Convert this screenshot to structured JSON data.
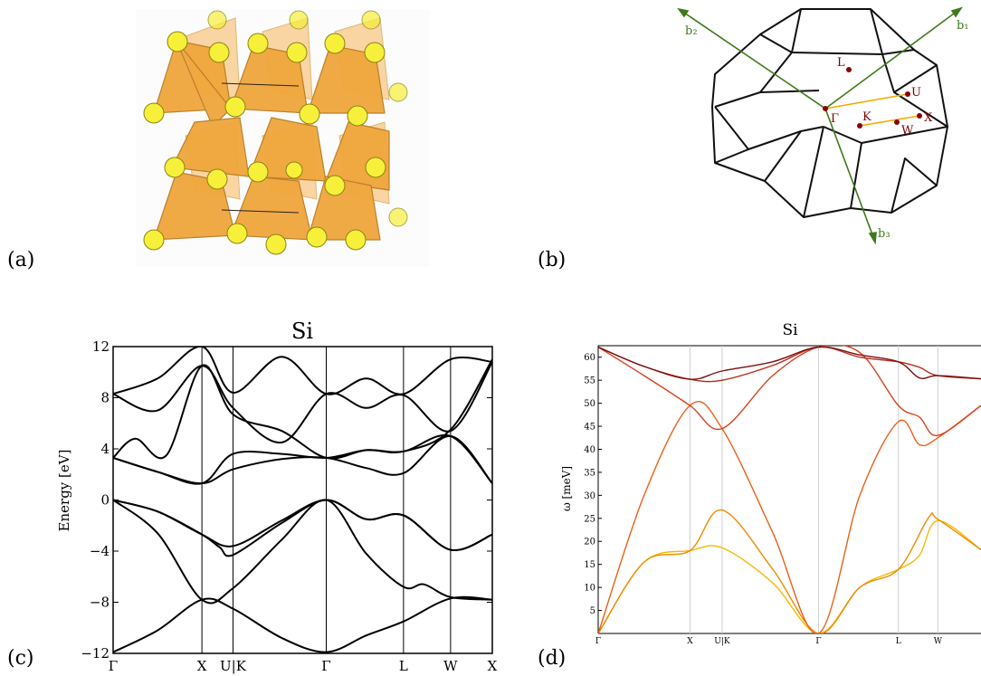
{
  "panels": {
    "a": {
      "label": "(a)"
    },
    "b": {
      "label": "(b)",
      "vectors": [
        "b₁",
        "b₂",
        "b₃"
      ],
      "points": [
        "L",
        "U",
        "Γ",
        "K",
        "X",
        "W"
      ]
    },
    "c": {
      "label": "(c)"
    },
    "d": {
      "label": "(d)"
    }
  },
  "chart_data": [
    {
      "type": "line",
      "title": "Si",
      "ylabel": "Energy [eV]",
      "xlabel": "",
      "ylim": [
        -12,
        12
      ],
      "yticks": [
        12,
        8,
        4,
        0,
        -4,
        -8,
        -12
      ],
      "yticklabels": [
        "12",
        "8",
        "4",
        "0",
        "−4",
        "−8",
        "−12"
      ],
      "kpath": {
        "labels": [
          "Γ",
          "X",
          "U|K",
          "Γ",
          "L",
          "W",
          "X"
        ],
        "positions": [
          0,
          1,
          1.35,
          2.4,
          3.27,
          3.8,
          4.27
        ]
      },
      "color": "#000000",
      "series": [
        {
          "values": [
            [
              0,
              -11.9
            ],
            [
              0.5,
              -10.2
            ],
            [
              1,
              -7.8
            ],
            [
              1.35,
              -8.5
            ],
            [
              1.9,
              -10.8
            ],
            [
              2.4,
              -11.9
            ],
            [
              2.85,
              -10.6
            ],
            [
              3.27,
              -9.5
            ],
            [
              3.8,
              -7.7
            ],
            [
              4.27,
              -7.8
            ]
          ]
        },
        {
          "values": [
            [
              0,
              0
            ],
            [
              0.5,
              -2.6
            ],
            [
              1,
              -7.8
            ],
            [
              1.35,
              -6.9
            ],
            [
              1.9,
              -3.1
            ],
            [
              2.4,
              0
            ],
            [
              2.85,
              -4.2
            ],
            [
              3.27,
              -6.8
            ],
            [
              3.5,
              -6.6
            ],
            [
              3.8,
              -7.6
            ],
            [
              4.27,
              -7.8
            ]
          ]
        },
        {
          "values": [
            [
              0,
              0
            ],
            [
              0.5,
              -0.9
            ],
            [
              1,
              -2.7
            ],
            [
              1.35,
              -3.6
            ],
            [
              1.9,
              -1.6
            ],
            [
              2.4,
              0
            ],
            [
              2.85,
              -1.5
            ],
            [
              3.27,
              -1.2
            ],
            [
              3.8,
              -3.9
            ],
            [
              4.27,
              -2.7
            ]
          ]
        },
        {
          "values": [
            [
              0,
              0
            ],
            [
              0.5,
              -0.9
            ],
            [
              1,
              -2.7
            ],
            [
              1.2,
              -3.7
            ],
            [
              1.35,
              -4.3
            ],
            [
              1.9,
              -1.8
            ],
            [
              2.4,
              0
            ],
            [
              2.85,
              -1.5
            ],
            [
              3.27,
              -1.2
            ],
            [
              3.8,
              -3.9
            ],
            [
              4.27,
              -2.7
            ]
          ]
        },
        {
          "values": [
            [
              0,
              3.3
            ],
            [
              0.5,
              2.2
            ],
            [
              1,
              1.3
            ],
            [
              1.35,
              2.4
            ],
            [
              1.9,
              3.2
            ],
            [
              2.4,
              3.3
            ],
            [
              2.85,
              2.5
            ],
            [
              3.27,
              2.1
            ],
            [
              3.8,
              5
            ],
            [
              4.27,
              1.3
            ]
          ]
        },
        {
          "values": [
            [
              0,
              3.3
            ],
            [
              0.5,
              2.2
            ],
            [
              1,
              1.3
            ],
            [
              1.35,
              3.6
            ],
            [
              1.9,
              3.6
            ],
            [
              2.4,
              3.3
            ],
            [
              2.85,
              3.9
            ],
            [
              3.27,
              3.8
            ],
            [
              3.8,
              5
            ],
            [
              4.27,
              1.3
            ]
          ]
        },
        {
          "values": [
            [
              0,
              3.3
            ],
            [
              0.25,
              4.8
            ],
            [
              0.6,
              3.5
            ],
            [
              1,
              10.5
            ],
            [
              1.35,
              6.7
            ],
            [
              1.9,
              5.4
            ],
            [
              2.4,
              3.3
            ],
            [
              2.85,
              3.9
            ],
            [
              3.27,
              3.8
            ],
            [
              3.8,
              5.5
            ],
            [
              4.27,
              11
            ]
          ]
        },
        {
          "values": [
            [
              0,
              8.3
            ],
            [
              0.5,
              7
            ],
            [
              1,
              10.5
            ],
            [
              1.35,
              7.2
            ],
            [
              1.9,
              4.5
            ],
            [
              2.4,
              8.3
            ],
            [
              2.85,
              7.2
            ],
            [
              3.27,
              8.2
            ],
            [
              3.8,
              5.4
            ],
            [
              4.27,
              10.8
            ]
          ]
        },
        {
          "values": [
            [
              0,
              8.3
            ],
            [
              0.5,
              9.5
            ],
            [
              1,
              12
            ],
            [
              1.35,
              8.4
            ],
            [
              1.9,
              11.2
            ],
            [
              2.4,
              8.3
            ],
            [
              2.85,
              9.5
            ],
            [
              3.27,
              8.3
            ],
            [
              3.8,
              11
            ],
            [
              4.27,
              10.8
            ]
          ]
        }
      ]
    },
    {
      "type": "line",
      "title": "Si",
      "ylabel": "ω [meV]",
      "xlabel": "",
      "ylim": [
        0,
        62.5
      ],
      "yticks": [
        5,
        10,
        15,
        20,
        25,
        30,
        35,
        40,
        45,
        50,
        55,
        60
      ],
      "kpath": {
        "labels": [
          "Γ",
          "X",
          "U|K",
          "Γ",
          "L",
          "W"
        ],
        "positions": [
          0,
          1,
          1.35,
          2.4,
          3.27,
          3.7
        ]
      },
      "xmax": 4.17,
      "series": [
        {
          "color": "#f5b800",
          "values": [
            [
              0,
              0
            ],
            [
              0.5,
              15.5
            ],
            [
              1,
              18
            ],
            [
              1.35,
              18.6
            ],
            [
              1.9,
              11
            ],
            [
              2.4,
              0
            ],
            [
              2.85,
              10
            ],
            [
              3.27,
              13.9
            ],
            [
              3.5,
              17
            ],
            [
              3.7,
              24.5
            ],
            [
              4.17,
              18.2
            ]
          ]
        },
        {
          "color": "#f08a00",
          "values": [
            [
              0,
              0
            ],
            [
              0.5,
              15.5
            ],
            [
              1,
              18
            ],
            [
              1.35,
              26.8
            ],
            [
              1.9,
              14
            ],
            [
              2.4,
              0
            ],
            [
              2.85,
              10
            ],
            [
              3.27,
              13.9
            ],
            [
              3.6,
              25.2
            ],
            [
              3.7,
              24.8
            ],
            [
              4.17,
              18.2
            ]
          ]
        },
        {
          "color": "#e8611a",
          "values": [
            [
              0,
              0
            ],
            [
              0.5,
              30
            ],
            [
              1,
              49.5
            ],
            [
              1.35,
              44.5
            ],
            [
              1.9,
              22
            ],
            [
              2.4,
              0
            ],
            [
              2.85,
              30
            ],
            [
              3.27,
              46
            ],
            [
              3.5,
              41
            ],
            [
              3.7,
              42.5
            ],
            [
              4.17,
              49.5
            ]
          ]
        },
        {
          "color": "#d84020",
          "values": [
            [
              0,
              62.2
            ],
            [
              0.5,
              56
            ],
            [
              1,
              49.5
            ],
            [
              1.35,
              44.5
            ],
            [
              1.9,
              56
            ],
            [
              2.4,
              62.2
            ],
            [
              2.85,
              61
            ],
            [
              3.27,
              49.5
            ],
            [
              3.5,
              47
            ],
            [
              3.7,
              43
            ],
            [
              4.17,
              49.5
            ]
          ]
        },
        {
          "color": "#b52a1a",
          "values": [
            [
              0,
              62.2
            ],
            [
              0.5,
              58
            ],
            [
              1,
              55.2
            ],
            [
              1.35,
              55
            ],
            [
              1.9,
              58.2
            ],
            [
              2.4,
              62.2
            ],
            [
              2.85,
              60
            ],
            [
              3.27,
              59
            ],
            [
              3.5,
              57.8
            ],
            [
              3.7,
              56
            ],
            [
              4.17,
              55.3
            ]
          ]
        },
        {
          "color": "#7a1010",
          "values": [
            [
              0,
              62.2
            ],
            [
              0.5,
              58
            ],
            [
              1,
              55.2
            ],
            [
              1.35,
              57
            ],
            [
              1.9,
              59
            ],
            [
              2.4,
              62.2
            ],
            [
              2.85,
              60.5
            ],
            [
              3.27,
              59
            ],
            [
              3.5,
              55.5
            ],
            [
              3.7,
              56
            ],
            [
              4.17,
              55.3
            ]
          ]
        }
      ]
    }
  ]
}
